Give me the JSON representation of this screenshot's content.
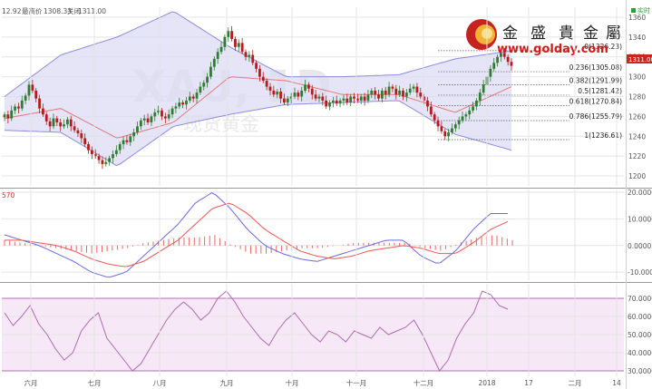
{
  "header": {
    "last_label": "12.92",
    "high_label": "最高价",
    "high_value": "1308.33",
    "close_label": "关闭",
    "close_value": "1311.00",
    "realtime_label": "实时"
  },
  "watermark": {
    "symbol": "XAU, 1D",
    "name": "现货黄金"
  },
  "logo": {
    "chars": [
      "金",
      "盛",
      "貴",
      "金",
      "屬"
    ],
    "url": "www.golday.com"
  },
  "price_tag": "1311.00",
  "colors": {
    "up": "#2e7d32",
    "down": "#b71c1c",
    "band_fill": "#dcdcf4",
    "band_line": "#8c8cdc",
    "ma": "#e07a7a",
    "macd_blue": "#6a6ae0",
    "macd_red": "#ee5555",
    "rsi_fill": "#f6e8f6",
    "rsi_line": "#b06ab0",
    "grid": "#e4e4e4"
  },
  "chart_data": [
    {
      "type": "candlestick",
      "panel": "price",
      "x_labels": [
        "六月",
        "七月",
        "八月",
        "九月",
        "十月",
        "十一月",
        "十二月",
        "2018",
        "17",
        "二月",
        "14"
      ],
      "ylim": [
        1190,
        1370
      ],
      "y_ticks": [
        1200,
        1220,
        1240,
        1260,
        1280,
        1300,
        1320,
        1340,
        1360
      ],
      "close": [
        1262,
        1258,
        1266,
        1270,
        1268,
        1276,
        1281,
        1292,
        1286,
        1278,
        1268,
        1262,
        1255,
        1250,
        1258,
        1254,
        1250,
        1252,
        1257,
        1250,
        1246,
        1243,
        1238,
        1232,
        1226,
        1222,
        1220,
        1216,
        1212,
        1214,
        1218,
        1222,
        1226,
        1232,
        1236,
        1234,
        1240,
        1244,
        1250,
        1256,
        1258,
        1254,
        1260,
        1264,
        1266,
        1260,
        1258,
        1262,
        1268,
        1270,
        1274,
        1272,
        1276,
        1280,
        1278,
        1284,
        1290,
        1294,
        1300,
        1310,
        1318,
        1325,
        1330,
        1340,
        1346,
        1338,
        1330,
        1334,
        1325,
        1320,
        1322,
        1314,
        1308,
        1300,
        1296,
        1290,
        1286,
        1282,
        1285,
        1278,
        1274,
        1278,
        1280,
        1284,
        1280,
        1286,
        1292,
        1288,
        1282,
        1278,
        1280,
        1276,
        1270,
        1274,
        1276,
        1273,
        1276,
        1278,
        1274,
        1280,
        1278,
        1276,
        1280,
        1276,
        1282,
        1286,
        1282,
        1278,
        1286,
        1282,
        1290,
        1288,
        1282,
        1286,
        1280,
        1284,
        1288,
        1290,
        1284,
        1280,
        1276,
        1270,
        1262,
        1256,
        1250,
        1245,
        1240,
        1244,
        1248,
        1252,
        1256,
        1260,
        1262,
        1266,
        1270,
        1276,
        1284,
        1292,
        1300,
        1308,
        1314,
        1320,
        1324,
        1320,
        1315,
        1311
      ],
      "series": [
        {
          "name": "Bollinger",
          "upper": [
            1280,
            1322,
            1340,
            1366,
            1330,
            1300,
            1300,
            1302,
            1318,
            1326
          ],
          "lower": [
            1246,
            1244,
            1210,
            1250,
            1262,
            1272,
            1274,
            1276,
            1242,
            1226
          ]
        },
        {
          "name": "MA",
          "values": [
            1258,
            1268,
            1238,
            1254,
            1300,
            1296,
            1282,
            1282,
            1264,
            1290
          ]
        }
      ],
      "fibonacci": [
        {
          "label": "0(1326.23)",
          "value": 1326.23
        },
        {
          "label": "0.236(1305.08)",
          "value": 1305.08
        },
        {
          "label": "0.382(1291.99)",
          "value": 1291.99
        },
        {
          "label": "0.5(1281.42)",
          "value": 1281.42
        },
        {
          "label": "0.618(1270.84)",
          "value": 1270.84
        },
        {
          "label": "0.786(1255.79)",
          "value": 1255.79
        },
        {
          "label": "1(1236.61)",
          "value": 1236.61
        }
      ]
    },
    {
      "type": "macd",
      "panel": "macd",
      "title": "570",
      "ylim": [
        -13,
        21
      ],
      "y_ticks": [
        -10.0,
        0.0,
        10.0,
        20.0
      ],
      "y_tick_labels": [
        "-10.0000",
        "0.0000",
        "10.0000",
        "20.0000"
      ],
      "macd": [
        4,
        2,
        0,
        -3,
        -6,
        -10,
        -12,
        -10,
        -4,
        2,
        8,
        16,
        20,
        14,
        6,
        0,
        -3,
        -5,
        -6,
        -4,
        -2,
        0,
        2,
        2,
        -4,
        -7,
        -2,
        6,
        12,
        12
      ],
      "signal": [
        2,
        2,
        1,
        0,
        -2,
        -5,
        -7,
        -8,
        -6,
        -2,
        2,
        8,
        14,
        16,
        12,
        6,
        2,
        -2,
        -4,
        -5,
        -4,
        -2,
        -1,
        0,
        -1,
        -3,
        -3,
        1,
        6,
        9
      ],
      "histogram": [
        2,
        1,
        0,
        -1,
        -2,
        -3,
        -2,
        -1,
        1,
        2,
        3,
        3,
        4,
        0,
        -3,
        -3,
        -2,
        -1,
        -1,
        0,
        1,
        1,
        1,
        1,
        -1,
        -2,
        1,
        3,
        4,
        2
      ]
    },
    {
      "type": "line",
      "panel": "rsi",
      "ylim": [
        27,
        78
      ],
      "y_ticks": [
        30,
        40,
        50,
        60,
        70
      ],
      "y_tick_labels": [
        "30.0000",
        "40.0000",
        "50.0000",
        "60.0000",
        "70.0000"
      ],
      "band": [
        30,
        70
      ],
      "values": [
        62,
        55,
        60,
        66,
        56,
        50,
        42,
        36,
        40,
        52,
        58,
        62,
        48,
        42,
        36,
        30,
        34,
        42,
        50,
        58,
        64,
        68,
        64,
        58,
        62,
        70,
        74,
        68,
        60,
        54,
        48,
        44,
        52,
        58,
        62,
        56,
        50,
        46,
        52,
        50,
        46,
        52,
        50,
        48,
        54,
        50,
        52,
        54,
        58,
        50,
        40,
        30,
        36,
        48,
        56,
        62,
        74,
        72,
        66,
        64
      ]
    }
  ]
}
